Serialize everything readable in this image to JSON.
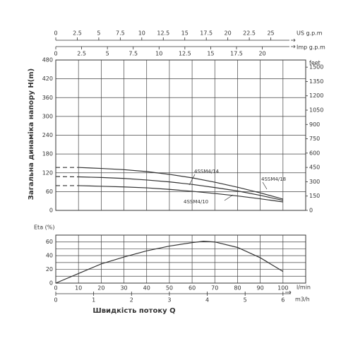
{
  "chart_data": [
    {
      "type": "line",
      "y_label": "Загальна динаміка напору H(m)",
      "y2_label": "feet",
      "us_label": "US g.p.m",
      "imp_label": "Imp g.p.m",
      "x": [
        0,
        10,
        20,
        30,
        40,
        50,
        60,
        70,
        80,
        90,
        100
      ],
      "xlim": [
        0,
        110
      ],
      "x_grid": [
        10,
        20,
        30,
        40,
        50,
        60,
        70,
        80,
        90,
        100
      ],
      "ylim": [
        0,
        480
      ],
      "yticks": [
        0,
        60,
        120,
        180,
        240,
        300,
        360,
        420,
        480
      ],
      "y2lim": [
        0,
        1575
      ],
      "y2ticks": [
        0,
        150,
        300,
        450,
        600,
        750,
        900,
        1050,
        1200,
        1350,
        1500
      ],
      "us_lim": [
        0,
        29.06
      ],
      "us_ticks": [
        0,
        2.5,
        5,
        7.5,
        10,
        12.5,
        15,
        17.5,
        20,
        22.5,
        25
      ],
      "imp_lim": [
        0,
        24.2
      ],
      "imp_ticks": [
        0,
        2.5,
        5,
        7.5,
        10,
        12.5,
        15,
        17.5,
        20
      ],
      "series": [
        {
          "name": "4SSM4/18",
          "color": "#333333",
          "values": [
            null,
            137,
            134,
            130,
            124,
            115,
            104,
            90,
            74,
            56,
            36
          ],
          "dashed_values": [
            137,
            137,
            null,
            null,
            null,
            null,
            null,
            null,
            null,
            null,
            null
          ]
        },
        {
          "name": "4SSM4/14",
          "color": "#333333",
          "values": [
            null,
            107,
            105,
            102,
            97,
            91,
            83,
            73,
            62,
            48,
            32
          ],
          "dashed_values": [
            108,
            107,
            null,
            null,
            null,
            null,
            null,
            null,
            null,
            null,
            null
          ]
        },
        {
          "name": "4SSM4/10",
          "color": "#333333",
          "values": [
            null,
            79,
            77,
            75,
            72,
            67,
            61,
            54,
            46,
            37,
            27
          ],
          "dashed_values": [
            79,
            79,
            null,
            null,
            null,
            null,
            null,
            null,
            null,
            null,
            null
          ]
        }
      ]
    },
    {
      "type": "line",
      "y_label": "Eta (%)",
      "x_label": "Швидкість потоку Q",
      "x_unit": "l/min",
      "x2_unit": "m3/h",
      "x": [
        0,
        10,
        20,
        30,
        40,
        50,
        60,
        65,
        70,
        80,
        90,
        100
      ],
      "values": [
        0,
        14,
        28,
        38,
        47,
        54,
        59,
        61,
        60,
        52,
        37,
        17
      ],
      "color": "#333333",
      "xlim": [
        0,
        110
      ],
      "xticks": [
        0,
        10,
        20,
        30,
        40,
        50,
        60,
        70,
        80,
        90,
        100
      ],
      "x2lim": [
        0,
        6.6
      ],
      "x2ticks": [
        0,
        1,
        2,
        3,
        4,
        5,
        6
      ],
      "ylim": [
        0,
        70
      ],
      "yticks": [
        0,
        20,
        40,
        60
      ],
      "minor_yticks": [
        10,
        30,
        50,
        70
      ]
    }
  ]
}
